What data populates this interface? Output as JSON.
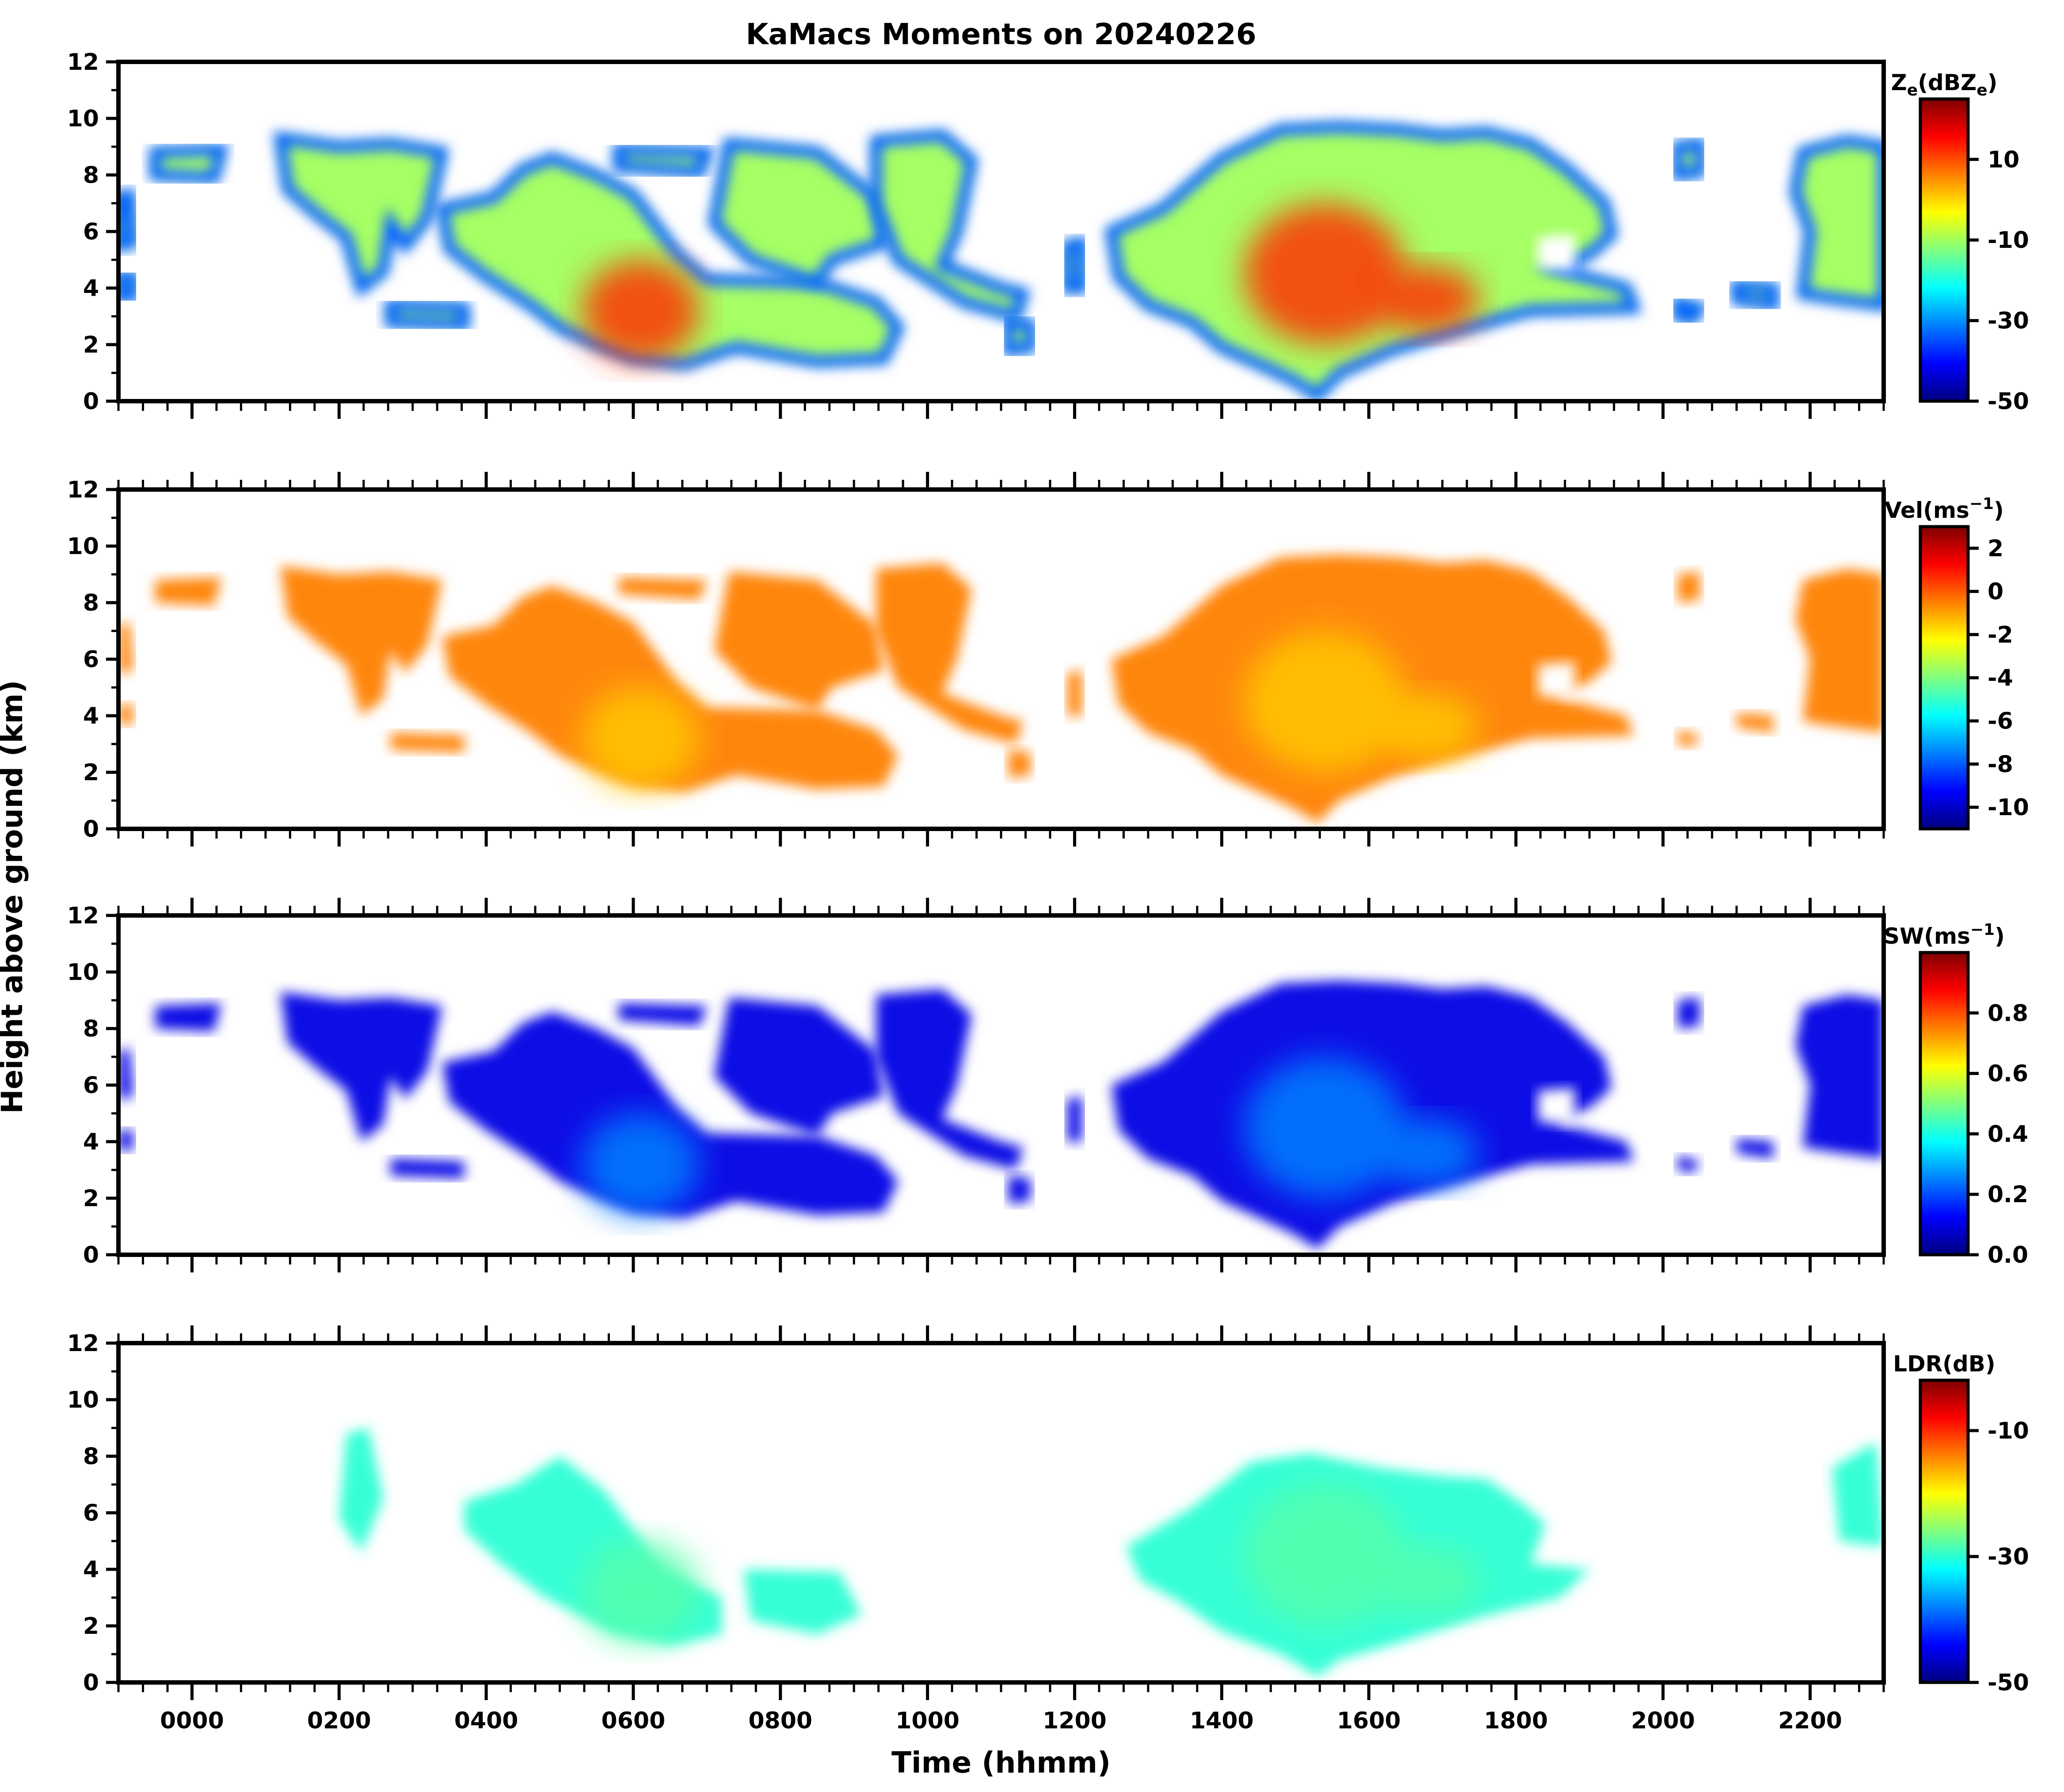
{
  "chart_data": {
    "type": "heatmap",
    "title": "KaMacs Moments on 20240226",
    "xlabel": "Time (hhmm)",
    "ylabel": "Height above ground (km)",
    "xlim_hours": [
      -1.0,
      23.0
    ],
    "x_tick_labels": [
      "0000",
      "0200",
      "0400",
      "0600",
      "0800",
      "1000",
      "1200",
      "1400",
      "1600",
      "1800",
      "2000",
      "2200"
    ],
    "x_tick_hours": [
      0,
      2,
      4,
      6,
      8,
      10,
      12,
      14,
      16,
      18,
      20,
      22
    ],
    "y_ticks": [
      "0",
      "2",
      "4",
      "6",
      "8",
      "10",
      "12"
    ],
    "ylim": [
      0,
      12
    ],
    "colors": {
      "jet": [
        "#00007f",
        "#0000ff",
        "#007fff",
        "#00ffff",
        "#7fff7f",
        "#ffff00",
        "#ff7f00",
        "#ff0000",
        "#7f0000"
      ]
    },
    "panels": [
      {
        "variable": "Ze",
        "colorbar_title": "Z",
        "colorbar_title_sub": "e",
        "colorbar_title_mid": "(dBZ",
        "colorbar_title_sub2": "e",
        "colorbar_title_end": ")",
        "vmin": -50,
        "vmax": 25,
        "colorbar_ticks": [
          "10",
          "-10",
          "-30",
          "-50"
        ],
        "colorbar_tick_values": [
          10,
          -10,
          -30,
          -50
        ],
        "echo_mean_value": -10,
        "core_value": 12
      },
      {
        "variable": "Vel",
        "colorbar_title": "Vel(ms",
        "colorbar_title_sup": "−1",
        "colorbar_title_end": ")",
        "vmin": -11,
        "vmax": 3,
        "colorbar_ticks": [
          "2",
          "0",
          "-2",
          "-4",
          "-6",
          "-8",
          "-10"
        ],
        "colorbar_tick_values": [
          2,
          0,
          -2,
          -4,
          -6,
          -8,
          -10
        ],
        "echo_mean_value": -0.5,
        "core_value": -1.5
      },
      {
        "variable": "SW",
        "colorbar_title": "SW(ms",
        "colorbar_title_sup": "−1",
        "colorbar_title_end": ")",
        "vmin": 0.0,
        "vmax": 1.0,
        "colorbar_ticks": [
          "0.8",
          "0.6",
          "0.4",
          "0.2",
          "0.0"
        ],
        "colorbar_tick_values": [
          0.8,
          0.6,
          0.4,
          0.2,
          0.0
        ],
        "echo_mean_value": 0.1,
        "core_value": 0.25
      },
      {
        "variable": "LDR",
        "colorbar_title": "LDR(dB)",
        "vmin": -50,
        "vmax": -2,
        "colorbar_ticks": [
          "-10",
          "-30",
          "-50"
        ],
        "colorbar_tick_values": [
          -10,
          -30,
          -50
        ],
        "echo_mean_value": -30,
        "core_value": -28
      }
    ]
  }
}
